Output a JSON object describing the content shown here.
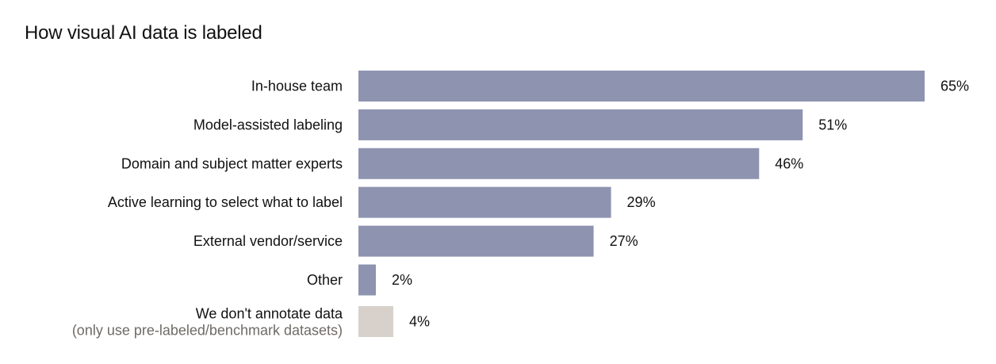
{
  "chart_data": {
    "type": "bar",
    "orientation": "horizontal",
    "title": "How visual AI data is labeled",
    "xlabel": "",
    "ylabel": "",
    "xlim": [
      0,
      65
    ],
    "grid": false,
    "legend": "none",
    "categories": [
      "In-house team",
      "Model-assisted labeling",
      "Domain and subject matter experts",
      "Active learning to select what to label",
      "External vendor/service",
      "Other",
      "We don't annotate data"
    ],
    "category_sublabels": [
      "",
      "",
      "",
      "",
      "",
      "",
      "(only use pre-labeled/benchmark datasets)"
    ],
    "values": [
      65,
      51,
      46,
      29,
      27,
      2,
      4
    ],
    "value_labels": [
      "65%",
      "51%",
      "46%",
      "29%",
      "27%",
      "2%",
      "4%"
    ],
    "bar_colors": [
      "#8e93b0",
      "#8e93b0",
      "#8e93b0",
      "#8e93b0",
      "#8e93b0",
      "#8e93b0",
      "#d8d1cb"
    ]
  }
}
